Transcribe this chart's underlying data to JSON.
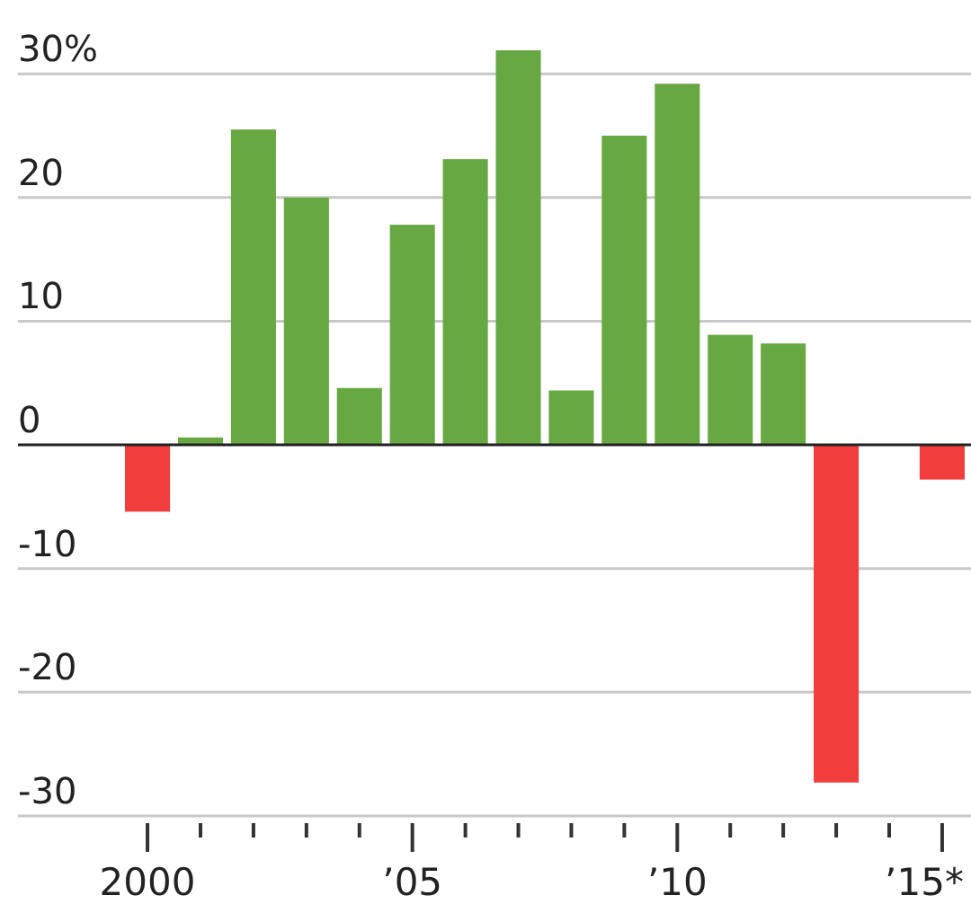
{
  "chart_data": {
    "type": "bar",
    "categories": [
      "2000",
      null,
      null,
      null,
      null,
      "’05",
      null,
      null,
      null,
      null,
      "’10",
      null,
      null,
      null,
      null,
      "’15*"
    ],
    "values": [
      -5.4,
      0.6,
      25.5,
      20.0,
      4.6,
      17.8,
      23.1,
      31.9,
      4.4,
      25.0,
      29.2,
      8.9,
      8.2,
      -27.3,
      null,
      -2.8
    ],
    "colors": [
      "#f23d3d",
      "#68a843",
      "#68a843",
      "#68a843",
      "#68a843",
      "#68a843",
      "#68a843",
      "#68a843",
      "#68a843",
      "#68a843",
      "#68a843",
      "#68a843",
      "#68a843",
      "#f23d3d",
      null,
      "#f23d3d"
    ],
    "ylim": [
      -30,
      31.9
    ],
    "yticks": [
      {
        "value": 30,
        "label": "30%"
      },
      20,
      10,
      0,
      -10,
      -20,
      -30
    ],
    "grid": "y"
  }
}
